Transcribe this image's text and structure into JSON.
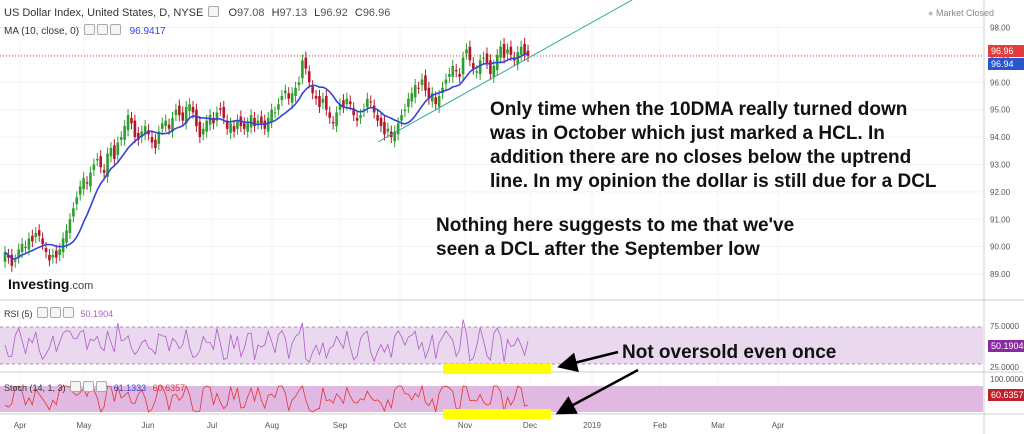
{
  "header": {
    "symbol": "US Dollar Index, United States, D, NYSE",
    "open_label": "O",
    "open": "97.08",
    "high_label": "H",
    "high": "97.13",
    "low_label": "L",
    "low": "96.92",
    "close_label": "C",
    "close": "96.96",
    "ma_label": "MA (10, close, 0)",
    "ma_value": "96.9417",
    "market_status": "Market Closed"
  },
  "logo": {
    "name": "Investing",
    "suffix": ".com"
  },
  "annotations": {
    "note1_lines": [
      "Only time when the 10DMA really turned down",
      "was in October which just marked a HCL. In",
      "addition there are no closes below the uptrend",
      "line. In my opinion the dollar is still due for a DCL"
    ],
    "note2_lines": [
      "Nothing here suggests to me that we've",
      "seen a DCL after the September low"
    ],
    "note3": "Not oversold even once"
  },
  "rsi": {
    "label": "RSI (5)",
    "value": "50.1904",
    "levels": [
      "75.0000",
      "25.0000"
    ]
  },
  "stoch": {
    "label": "Stoch (14, 1, 3)",
    "k": "61.1333",
    "d": "60.6357",
    "levels": [
      "100.0000",
      "60.6357"
    ]
  },
  "price_tags": {
    "close": "96.96",
    "ma": "96.94"
  },
  "colors": {
    "up": "#2e9e2e",
    "down": "#b5172a",
    "ma": "#3344dd",
    "trend": "#2aa898",
    "rsi_line": "#b05cc8",
    "stoch_line": "#e33333",
    "band": "#e9d8ee",
    "stoch_band": "#d9a6d9",
    "highlight": "#ffff00",
    "close_tag": "#e23c3c",
    "ma_tag": "#2a55cc"
  },
  "chart_data": {
    "type": "candlestick",
    "y_ticks": [
      "98.00",
      "97.00",
      "96.00",
      "95.00",
      "94.00",
      "93.00",
      "92.00",
      "91.00",
      "90.00",
      "89.00"
    ],
    "ylim": [
      88.6,
      98.2
    ],
    "x_ticks": [
      "Apr",
      "May",
      "Jun",
      "Jul",
      "Aug",
      "Sep",
      "Oct",
      "Nov",
      "Dec",
      "2019",
      "Feb",
      "Mar",
      "Apr"
    ],
    "closes": [
      89.8,
      89.6,
      89.3,
      89.5,
      89.9,
      90.1,
      90.0,
      90.3,
      90.2,
      90.5,
      90.4,
      90.1,
      89.8,
      89.5,
      89.7,
      89.6,
      89.9,
      90.3,
      90.6,
      91.0,
      91.4,
      91.8,
      92.2,
      92.5,
      92.3,
      92.7,
      93.0,
      93.2,
      92.9,
      92.7,
      93.4,
      93.6,
      93.2,
      93.8,
      94.0,
      94.4,
      94.8,
      94.5,
      94.0,
      93.9,
      94.2,
      94.4,
      94.1,
      93.8,
      93.6,
      94.2,
      94.5,
      94.6,
      94.3,
      94.7,
      95.0,
      94.8,
      94.6,
      95.1,
      95.2,
      94.9,
      94.4,
      94.0,
      94.3,
      94.6,
      94.8,
      94.5,
      94.9,
      95.0,
      94.7,
      94.3,
      94.5,
      94.2,
      94.6,
      94.4,
      94.3,
      94.5,
      94.8,
      94.4,
      94.6,
      94.5,
      94.3,
      94.7,
      95.0,
      94.9,
      95.2,
      95.5,
      95.7,
      95.4,
      95.6,
      95.8,
      96.0,
      96.8,
      96.5,
      96.0,
      95.6,
      95.4,
      95.1,
      95.4,
      95.0,
      94.7,
      94.5,
      94.9,
      95.2,
      95.1,
      95.4,
      95.2,
      94.8,
      94.6,
      94.8,
      95.0,
      95.4,
      95.3,
      94.9,
      94.6,
      94.4,
      94.1,
      94.3,
      94.0,
      94.2,
      94.5,
      94.8,
      95.0,
      95.4,
      95.6,
      95.9,
      95.8,
      96.1,
      95.7,
      95.4,
      95.6,
      95.2,
      95.5,
      95.8,
      96.1,
      96.3,
      96.6,
      96.4,
      96.2,
      96.9,
      97.2,
      96.8,
      96.5,
      96.4,
      96.8,
      96.9,
      96.7,
      96.3,
      96.6,
      97.0,
      97.3,
      96.9,
      97.2,
      97.0,
      96.8,
      97.1,
      97.3,
      97.0,
      96.96
    ]
  }
}
